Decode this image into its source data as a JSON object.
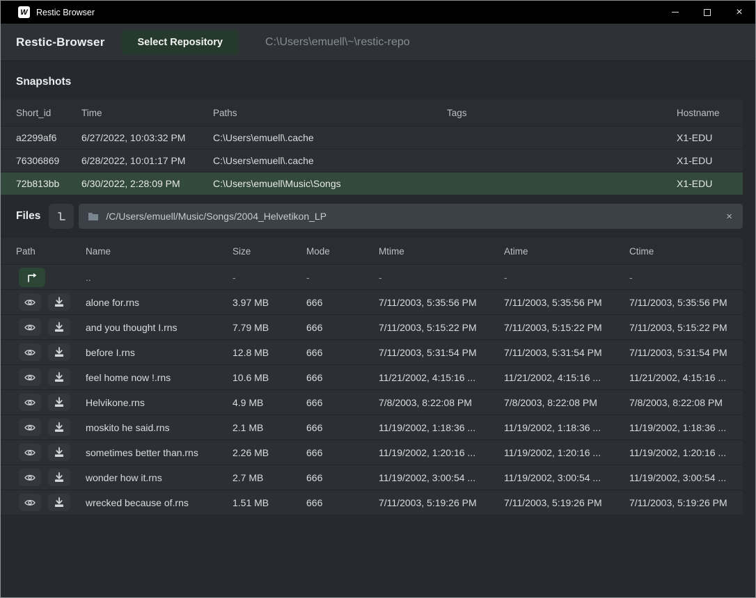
{
  "titlebar": {
    "app_icon_letter": "W",
    "title": "Restic Browser",
    "close_glyph": "×"
  },
  "header": {
    "title": "Restic-Browser",
    "select_repository_label": "Select Repository",
    "repository_path": "C:\\Users\\emuell\\~\\restic-repo"
  },
  "snapshots": {
    "section_title": "Snapshots",
    "columns": {
      "short_id": "Short_id",
      "time": "Time",
      "paths": "Paths",
      "tags": "Tags",
      "hostname": "Hostname"
    },
    "rows": [
      {
        "short_id": "a2299af6",
        "time": "6/27/2022, 10:03:32 PM",
        "paths": "C:\\Users\\emuell\\.cache",
        "tags": "",
        "hostname": "X1-EDU",
        "selected": false
      },
      {
        "short_id": "76306869",
        "time": "6/28/2022, 10:01:17 PM",
        "paths": "C:\\Users\\emuell\\.cache",
        "tags": "",
        "hostname": "X1-EDU",
        "selected": false
      },
      {
        "short_id": "72b813bb",
        "time": "6/30/2022, 2:28:09 PM",
        "paths": "C:\\Users\\emuell\\Music\\Songs",
        "tags": "",
        "hostname": "X1-EDU",
        "selected": true
      }
    ]
  },
  "files": {
    "section_title": "Files",
    "path_bar": {
      "value": "/C/Users/emuell/Music/Songs/2004_Helvetikon_LP",
      "clear_glyph": "×"
    },
    "columns": {
      "path": "Path",
      "name": "Name",
      "size": "Size",
      "mode": "Mode",
      "mtime": "Mtime",
      "atime": "Atime",
      "ctime": "Ctime"
    },
    "parent_row": {
      "name": "..",
      "size": "-",
      "mode": "-",
      "mtime": "-",
      "atime": "-",
      "ctime": "-"
    },
    "rows": [
      {
        "name": "alone for.rns",
        "size": "3.97 MB",
        "mode": "666",
        "mtime": "7/11/2003, 5:35:56 PM",
        "atime": "7/11/2003, 5:35:56 PM",
        "ctime": "7/11/2003, 5:35:56 PM"
      },
      {
        "name": "and you thought I.rns",
        "size": "7.79 MB",
        "mode": "666",
        "mtime": "7/11/2003, 5:15:22 PM",
        "atime": "7/11/2003, 5:15:22 PM",
        "ctime": "7/11/2003, 5:15:22 PM"
      },
      {
        "name": "before I.rns",
        "size": "12.8 MB",
        "mode": "666",
        "mtime": "7/11/2003, 5:31:54 PM",
        "atime": "7/11/2003, 5:31:54 PM",
        "ctime": "7/11/2003, 5:31:54 PM"
      },
      {
        "name": "feel home now !.rns",
        "size": "10.6 MB",
        "mode": "666",
        "mtime": "11/21/2002, 4:15:16 ...",
        "atime": "11/21/2002, 4:15:16 ...",
        "ctime": "11/21/2002, 4:15:16 ..."
      },
      {
        "name": "Helvikone.rns",
        "size": "4.9 MB",
        "mode": "666",
        "mtime": "7/8/2003, 8:22:08 PM",
        "atime": "7/8/2003, 8:22:08 PM",
        "ctime": "7/8/2003, 8:22:08 PM"
      },
      {
        "name": "moskito he said.rns",
        "size": "2.1 MB",
        "mode": "666",
        "mtime": "11/19/2002, 1:18:36 ...",
        "atime": "11/19/2002, 1:18:36 ...",
        "ctime": "11/19/2002, 1:18:36 ..."
      },
      {
        "name": "sometimes better than.rns",
        "size": "2.26 MB",
        "mode": "666",
        "mtime": "11/19/2002, 1:20:16 ...",
        "atime": "11/19/2002, 1:20:16 ...",
        "ctime": "11/19/2002, 1:20:16 ..."
      },
      {
        "name": "wonder how it.rns",
        "size": "2.7 MB",
        "mode": "666",
        "mtime": "11/19/2002, 3:00:54 ...",
        "atime": "11/19/2002, 3:00:54 ...",
        "ctime": "11/19/2002, 3:00:54 ..."
      },
      {
        "name": "wrecked because of.rns",
        "size": "1.51 MB",
        "mode": "666",
        "mtime": "7/11/2003, 5:19:26 PM",
        "atime": "7/11/2003, 5:19:26 PM",
        "ctime": "7/11/2003, 5:19:26 PM"
      }
    ]
  },
  "colors": {
    "titlebar_bg": "#000000",
    "header_bg": "#2e3236",
    "page_bg": "#26292d",
    "row_bg": "#2c3034",
    "selected_row_green": "#33493c",
    "button_green": "#25392c",
    "up_button_green": "#2b4634",
    "path_bar_bg": "#3b4147"
  }
}
